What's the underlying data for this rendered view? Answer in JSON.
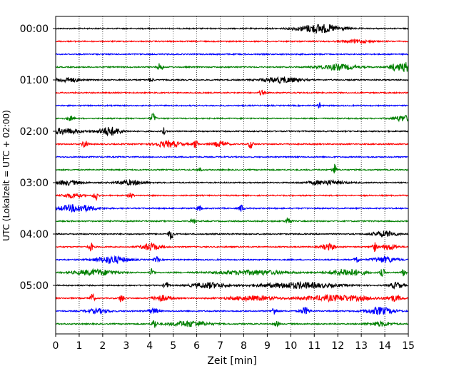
{
  "chart_data": {
    "type": "line",
    "title": "",
    "xlabel": "Zeit  [min]",
    "ylabel": "UTC (Lokalzeit = UTC + 02:00)",
    "xlim": [
      0,
      15
    ],
    "x_ticks": [
      "0",
      "1",
      "2",
      "3",
      "4",
      "5",
      "6",
      "7",
      "8",
      "9",
      "10",
      "11",
      "12",
      "13",
      "14",
      "15"
    ],
    "y_ticks": [
      "00:00",
      "01:00",
      "02:00",
      "03:00",
      "04:00",
      "05:00"
    ],
    "grid": "vertical dotted at each minute",
    "trace_interval_minutes": 15,
    "color_cycle": [
      "#000000",
      "#ff0000",
      "#0000ff",
      "#008000"
    ],
    "traces": [
      {
        "start": "00:00",
        "color": "#000000",
        "bursts": [
          [
            11.2,
            0.9,
            6
          ]
        ]
      },
      {
        "start": "00:15",
        "color": "#ff0000",
        "bursts": [
          [
            12.8,
            0.6,
            2
          ]
        ]
      },
      {
        "start": "00:30",
        "color": "#0000ff",
        "bursts": []
      },
      {
        "start": "00:45",
        "color": "#008000",
        "bursts": [
          [
            4.45,
            0.1,
            6
          ],
          [
            12.0,
            0.8,
            4
          ],
          [
            14.5,
            0.3,
            5
          ],
          [
            14.9,
            0.15,
            6
          ]
        ]
      },
      {
        "start": "01:00",
        "color": "#000000",
        "bursts": [
          [
            0.5,
            0.5,
            3
          ],
          [
            4.05,
            0.1,
            3
          ],
          [
            9.6,
            0.8,
            4
          ]
        ]
      },
      {
        "start": "01:15",
        "color": "#ff0000",
        "bursts": [
          [
            8.75,
            0.1,
            3
          ]
        ]
      },
      {
        "start": "01:30",
        "color": "#0000ff",
        "bursts": [
          [
            11.2,
            0.05,
            6
          ]
        ]
      },
      {
        "start": "01:45",
        "color": "#008000",
        "bursts": [
          [
            0.6,
            0.15,
            3
          ],
          [
            4.15,
            0.1,
            7
          ],
          [
            14.8,
            0.4,
            4
          ]
        ]
      },
      {
        "start": "02:00",
        "color": "#000000",
        "bursts": [
          [
            0.3,
            0.7,
            4
          ],
          [
            2.3,
            0.5,
            6
          ],
          [
            4.6,
            0.05,
            5
          ]
        ]
      },
      {
        "start": "02:15",
        "color": "#ff0000",
        "bursts": [
          [
            1.25,
            0.1,
            7
          ],
          [
            4.8,
            0.6,
            4
          ],
          [
            5.95,
            0.1,
            6
          ],
          [
            7.0,
            0.3,
            4
          ],
          [
            8.3,
            0.1,
            6
          ]
        ]
      },
      {
        "start": "02:30",
        "color": "#0000ff",
        "bursts": []
      },
      {
        "start": "02:45",
        "color": "#008000",
        "bursts": [
          [
            6.1,
            0.1,
            3
          ],
          [
            11.85,
            0.1,
            8
          ]
        ]
      },
      {
        "start": "03:00",
        "color": "#000000",
        "bursts": [
          [
            0.5,
            0.6,
            3
          ],
          [
            3.2,
            0.6,
            3
          ],
          [
            11.5,
            0.8,
            3
          ]
        ]
      },
      {
        "start": "03:15",
        "color": "#ff0000",
        "bursts": [
          [
            0.7,
            0.4,
            3
          ],
          [
            1.7,
            0.1,
            7
          ],
          [
            3.2,
            0.1,
            4
          ]
        ]
      },
      {
        "start": "03:30",
        "color": "#0000ff",
        "bursts": [
          [
            0.9,
            0.8,
            5
          ],
          [
            6.1,
            0.1,
            4
          ],
          [
            7.9,
            0.1,
            5
          ]
        ]
      },
      {
        "start": "03:45",
        "color": "#008000",
        "bursts": [
          [
            5.85,
            0.1,
            4
          ],
          [
            9.9,
            0.1,
            7
          ]
        ]
      },
      {
        "start": "04:00",
        "color": "#000000",
        "bursts": [
          [
            4.9,
            0.1,
            8
          ],
          [
            14.0,
            0.5,
            4
          ]
        ]
      },
      {
        "start": "04:15",
        "color": "#ff0000",
        "bursts": [
          [
            1.5,
            0.1,
            6
          ],
          [
            4.05,
            0.4,
            5
          ],
          [
            11.6,
            0.3,
            4
          ],
          [
            13.55,
            0.1,
            7
          ],
          [
            14.2,
            0.3,
            4
          ]
        ]
      },
      {
        "start": "04:30",
        "color": "#0000ff",
        "bursts": [
          [
            2.4,
            0.7,
            5
          ],
          [
            4.3,
            0.1,
            4
          ],
          [
            12.8,
            0.1,
            5
          ],
          [
            14.0,
            0.5,
            4
          ]
        ]
      },
      {
        "start": "04:45",
        "color": "#008000",
        "bursts": [
          [
            1.7,
            0.9,
            4
          ],
          [
            4.1,
            0.1,
            5
          ],
          [
            8.4,
            1.5,
            3
          ],
          [
            12.4,
            0.7,
            5
          ],
          [
            13.9,
            0.1,
            5
          ],
          [
            14.8,
            0.1,
            5
          ]
        ]
      },
      {
        "start": "05:00",
        "color": "#000000",
        "bursts": [
          [
            4.7,
            0.1,
            5
          ],
          [
            6.5,
            0.7,
            4
          ],
          [
            10.3,
            1.6,
            4
          ],
          [
            14.5,
            0.3,
            4
          ]
        ]
      },
      {
        "start": "05:15",
        "color": "#ff0000",
        "bursts": [
          [
            1.55,
            0.1,
            6
          ],
          [
            2.8,
            0.1,
            6
          ],
          [
            4.5,
            0.4,
            4
          ],
          [
            8.3,
            1.0,
            3
          ],
          [
            12.0,
            1.5,
            4
          ],
          [
            14.4,
            0.3,
            4
          ]
        ]
      },
      {
        "start": "05:30",
        "color": "#0000ff",
        "bursts": [
          [
            1.8,
            0.5,
            3
          ],
          [
            4.15,
            0.2,
            4
          ],
          [
            9.3,
            0.1,
            6
          ],
          [
            10.6,
            0.2,
            5
          ],
          [
            13.8,
            0.6,
            5
          ]
        ]
      },
      {
        "start": "05:45",
        "color": "#008000",
        "bursts": [
          [
            4.2,
            0.1,
            7
          ],
          [
            5.7,
            0.8,
            4
          ],
          [
            9.4,
            0.1,
            4
          ],
          [
            13.8,
            0.5,
            3
          ]
        ]
      }
    ]
  }
}
